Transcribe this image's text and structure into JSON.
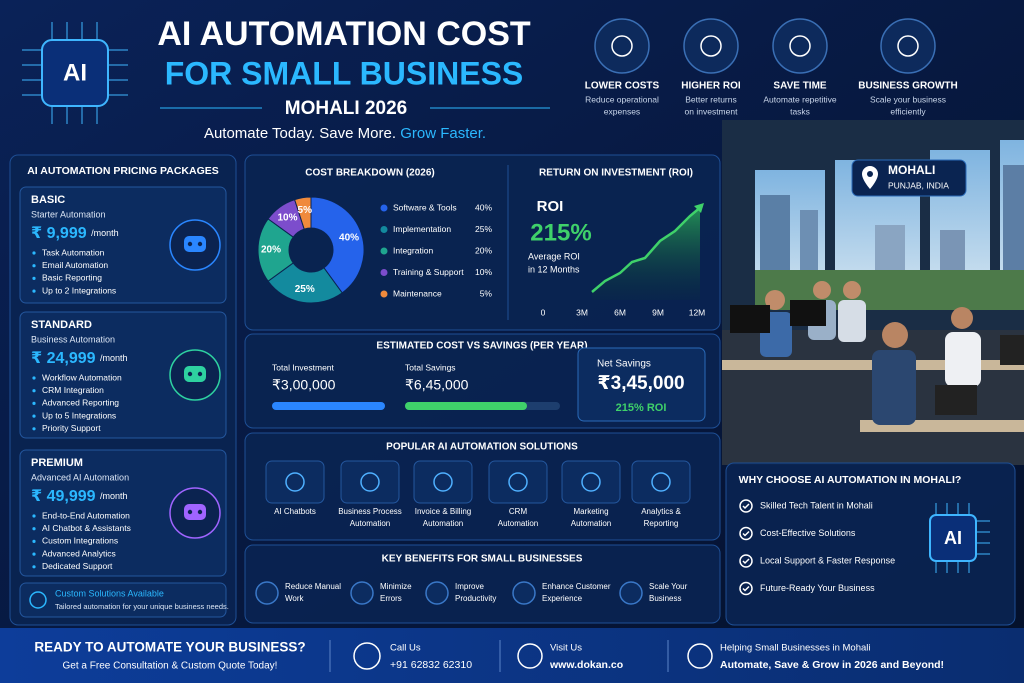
{
  "header": {
    "logo": "AI",
    "title_line1": "AI AUTOMATION COST",
    "title_line2": "FOR SMALL BUSINESS",
    "location": "MOHALI 2026",
    "tagline": "Automate Today. Save More.",
    "tagline_highlight": "Grow Faster."
  },
  "features": [
    {
      "title": "LOWER COSTS",
      "desc": [
        "Reduce operational",
        "expenses"
      ]
    },
    {
      "title": "HIGHER ROI",
      "desc": [
        "Better returns",
        "on investment"
      ]
    },
    {
      "title": "SAVE TIME",
      "desc": [
        "Automate repetitive",
        "tasks"
      ]
    },
    {
      "title": "BUSINESS GROWTH",
      "desc": [
        "Scale your business",
        "efficiently"
      ]
    }
  ],
  "pricing": {
    "title": "AI AUTOMATION PRICING PACKAGES",
    "packages": [
      {
        "name": "BASIC",
        "subtitle": "Starter Automation",
        "price": "₹ 9,999",
        "period": "/month",
        "features": [
          "Task Automation",
          "Email Automation",
          "Basic Reporting",
          "Up to 2 Integrations"
        ]
      },
      {
        "name": "STANDARD",
        "subtitle": "Business Automation",
        "price": "₹ 24,999",
        "period": "/month",
        "features": [
          "Workflow Automation",
          "CRM Integration",
          "Advanced Reporting",
          "Up to 5 Integrations",
          "Priority Support"
        ]
      },
      {
        "name": "PREMIUM",
        "subtitle": "Advanced AI Automation",
        "price": "₹ 49,999",
        "period": "/month",
        "features": [
          "End-to-End Automation",
          "AI Chatbot & Assistants",
          "Custom Integrations",
          "Advanced Analytics",
          "Dedicated Support"
        ]
      }
    ],
    "custom": {
      "title": "Custom Solutions Available",
      "desc": "Tailored automation for your unique business needs."
    }
  },
  "cost_breakdown": {
    "type": "pie",
    "title": "COST BREAKDOWN (2026)",
    "categories": [
      "Software & Tools",
      "Implementation",
      "Integration",
      "Training & Support",
      "Maintenance"
    ],
    "values": [
      40,
      25,
      20,
      10,
      5
    ],
    "value_labels": [
      "40%",
      "25%",
      "20%",
      "10%",
      "5%"
    ],
    "colors": [
      "#2563eb",
      "#138a9e",
      "#1fa58f",
      "#7c4dcc",
      "#f08a3c"
    ]
  },
  "roi": {
    "title": "RETURN ON INVESTMENT (ROI)",
    "label": "ROI",
    "value": "215%",
    "desc": [
      "Average ROI",
      "in 12 Months"
    ],
    "x_labels": [
      "0",
      "3M",
      "6M",
      "9M",
      "12M"
    ]
  },
  "savings": {
    "title": "ESTIMATED COST VS SAVINGS (PER YEAR)",
    "investment_label": "Total Investment",
    "investment": "₹3,00,000",
    "savings_label": "Total Savings",
    "savings": "₹6,45,000",
    "net_label": "Net Savings",
    "net": "₹3,45,000",
    "net_roi": "215% ROI"
  },
  "solutions": {
    "title": "POPULAR AI AUTOMATION SOLUTIONS",
    "items": [
      [
        "AI Chatbots"
      ],
      [
        "Business Process",
        "Automation"
      ],
      [
        "Invoice & Billing",
        "Automation"
      ],
      [
        "CRM",
        "Automation"
      ],
      [
        "Marketing",
        "Automation"
      ],
      [
        "Analytics &",
        "Reporting"
      ]
    ]
  },
  "benefits": {
    "title": "KEY BENEFITS FOR SMALL BUSINESSES",
    "items": [
      [
        "Reduce Manual",
        "Work"
      ],
      [
        "Minimize",
        "Errors"
      ],
      [
        "Improve",
        "Productivity"
      ],
      [
        "Enhance Customer",
        "Experience"
      ],
      [
        "Scale Your",
        "Business"
      ]
    ]
  },
  "location": {
    "city": "MOHALI",
    "region": "PUNJAB, INDIA"
  },
  "why": {
    "title": "WHY CHOOSE AI AUTOMATION IN MOHALI?",
    "items": [
      "Skilled Tech Talent in Mohali",
      "Cost-Effective Solutions",
      "Local Support & Faster Response",
      "Future-Ready Your Business"
    ],
    "badge": "AI"
  },
  "footer": {
    "cta_title": "READY TO AUTOMATE YOUR BUSINESS?",
    "cta_sub": "Get a Free Consultation & Custom Quote Today!",
    "call_label": "Call Us",
    "phone": "+91 62832 62310",
    "visit_label": "Visit Us",
    "url": "www.dokan.co",
    "tagline1": "Helping Small Businesses in Mohali",
    "tagline2": "Automate, Save & Grow in 2026 and Beyond!"
  }
}
